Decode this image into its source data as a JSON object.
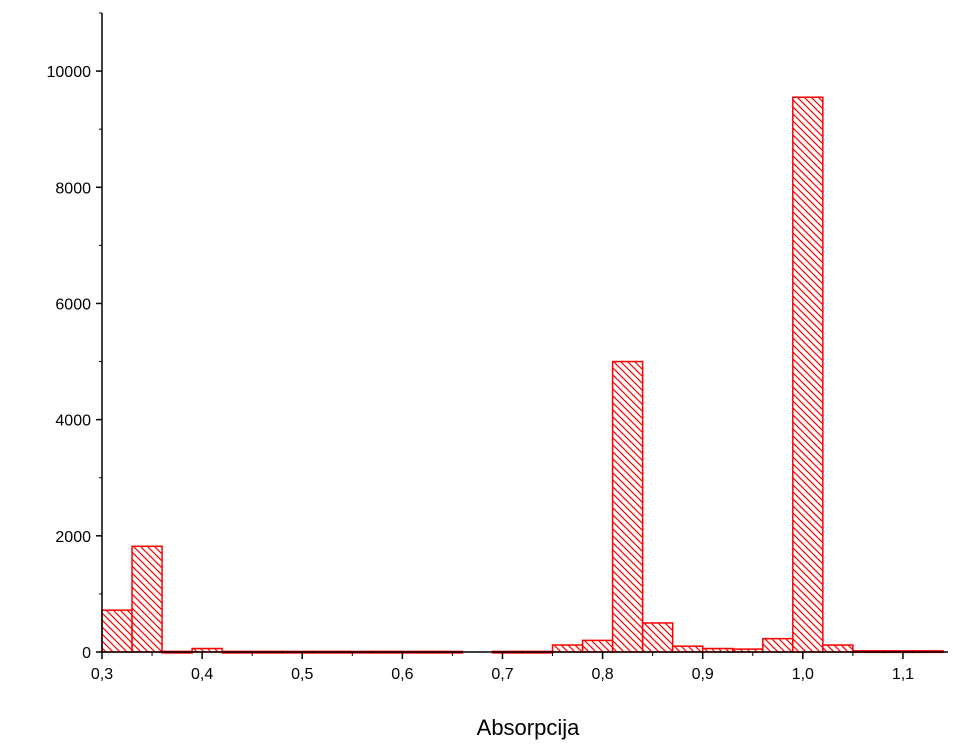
{
  "chart_data": {
    "type": "bar",
    "title": "",
    "xlabel": "Absorpcija",
    "ylabel": "",
    "xlim": [
      0.3,
      1.145
    ],
    "ylim": [
      0,
      11000
    ],
    "bin_width": 0.03,
    "x_ticks": [
      {
        "value": 0.3,
        "label": "0,3"
      },
      {
        "value": 0.4,
        "label": "0,4"
      },
      {
        "value": 0.5,
        "label": "0,5"
      },
      {
        "value": 0.6,
        "label": "0,6"
      },
      {
        "value": 0.7,
        "label": "0,7"
      },
      {
        "value": 0.8,
        "label": "0,8"
      },
      {
        "value": 0.9,
        "label": "0,9"
      },
      {
        "value": 1.0,
        "label": "1,0"
      },
      {
        "value": 1.1,
        "label": "1,1"
      }
    ],
    "y_ticks": [
      {
        "value": 0,
        "label": "0"
      },
      {
        "value": 2000,
        "label": "2000"
      },
      {
        "value": 4000,
        "label": "4000"
      },
      {
        "value": 6000,
        "label": "6000"
      },
      {
        "value": 8000,
        "label": "8000"
      },
      {
        "value": 10000,
        "label": "10000"
      }
    ],
    "bins": [
      {
        "start": 0.3,
        "value": 720
      },
      {
        "start": 0.33,
        "value": 1820
      },
      {
        "start": 0.36,
        "value": 10
      },
      {
        "start": 0.39,
        "value": 60
      },
      {
        "start": 0.42,
        "value": 10
      },
      {
        "start": 0.45,
        "value": 10
      },
      {
        "start": 0.48,
        "value": 10
      },
      {
        "start": 0.51,
        "value": 10
      },
      {
        "start": 0.54,
        "value": 10
      },
      {
        "start": 0.57,
        "value": 10
      },
      {
        "start": 0.6,
        "value": 10
      },
      {
        "start": 0.63,
        "value": 10
      },
      {
        "start": 0.69,
        "value": 10
      },
      {
        "start": 0.72,
        "value": 10
      },
      {
        "start": 0.75,
        "value": 120
      },
      {
        "start": 0.78,
        "value": 200
      },
      {
        "start": 0.81,
        "value": 5000
      },
      {
        "start": 0.84,
        "value": 500
      },
      {
        "start": 0.87,
        "value": 100
      },
      {
        "start": 0.9,
        "value": 60
      },
      {
        "start": 0.93,
        "value": 50
      },
      {
        "start": 0.96,
        "value": 230
      },
      {
        "start": 0.99,
        "value": 9550
      },
      {
        "start": 1.02,
        "value": 120
      },
      {
        "start": 1.05,
        "value": 20
      },
      {
        "start": 1.08,
        "value": 20
      },
      {
        "start": 1.11,
        "value": 20
      }
    ],
    "fill_pattern": "diagonal-hatch",
    "bar_color": "#ff0000",
    "grid": false,
    "legend": "none"
  }
}
